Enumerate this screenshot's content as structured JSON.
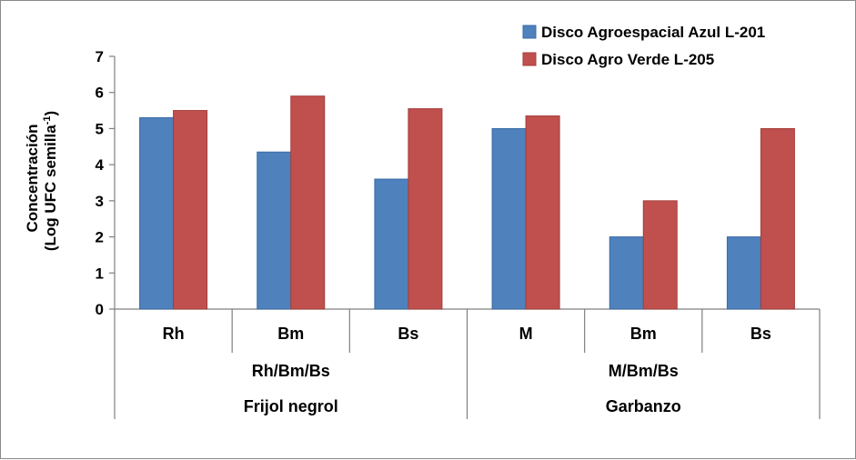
{
  "chart_data": {
    "type": "bar",
    "ylabel_line1": "Concentración",
    "ylabel_line2": "(Log UFC semilla",
    "ylabel_sup": "-1",
    "ylabel_close": ")",
    "ylim": [
      0,
      7
    ],
    "yticks": [
      "0",
      "1",
      "2",
      "3",
      "4",
      "5",
      "6",
      "7"
    ],
    "grid": false,
    "legend_position": "top-right",
    "categories": [
      "Rh",
      "Bm",
      "Bs",
      "M",
      "Bm",
      "Bs"
    ],
    "group_labels": [
      "Rh/Bm/Bs",
      "M/Bm/Bs"
    ],
    "crop_labels": [
      "Frijol negrol",
      "Garbanzo"
    ],
    "series": [
      {
        "name": "Disco Agroespacial Azul L-201",
        "color": "#4f81bd",
        "values": [
          5.3,
          4.35,
          3.6,
          5.0,
          2.0,
          2.0
        ]
      },
      {
        "name": "Disco Agro Verde L-205",
        "color": "#c0504d",
        "values": [
          5.5,
          5.9,
          5.55,
          5.35,
          3.0,
          5.0
        ]
      }
    ]
  }
}
